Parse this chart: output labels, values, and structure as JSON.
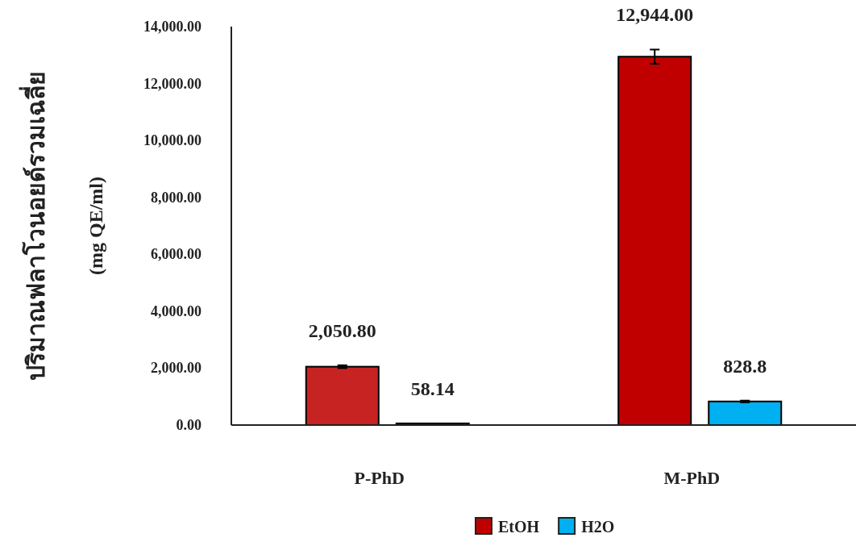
{
  "chart_data": {
    "type": "bar",
    "ylabel": "ปริมาณฟลาโวนอยด์รวมเฉลี่ย\n(mg QE/ml)",
    "categories": [
      "P-PhD",
      "M-PhD"
    ],
    "series": [
      {
        "name": "EtOH",
        "color": "#c00000",
        "colors": [
          "#c82323",
          "#c00000"
        ],
        "values": [
          2050.8,
          12944
        ],
        "errors": [
          50,
          250
        ],
        "value_labels": [
          "2,050.80",
          "12,944.00"
        ]
      },
      {
        "name": "H2O",
        "color": "#00b0f0",
        "values": [
          58.14,
          828.8
        ],
        "errors": [
          null,
          30
        ],
        "value_labels": [
          "58.14",
          "828.8"
        ]
      }
    ],
    "ylim": [
      0,
      14000
    ],
    "yticks": [
      {
        "value": 0,
        "label": "0.00"
      },
      {
        "value": 2000,
        "label": "2,000.00"
      },
      {
        "value": 4000,
        "label": "4,000.00"
      },
      {
        "value": 6000,
        "label": "6,000.00"
      },
      {
        "value": 8000,
        "label": "8,000.00"
      },
      {
        "value": 10000,
        "label": "10,000.00"
      },
      {
        "value": 12000,
        "label": "12,000.00"
      },
      {
        "value": 14000,
        "label": "14,000.00"
      }
    ],
    "grid": false,
    "legend": "bottom"
  }
}
